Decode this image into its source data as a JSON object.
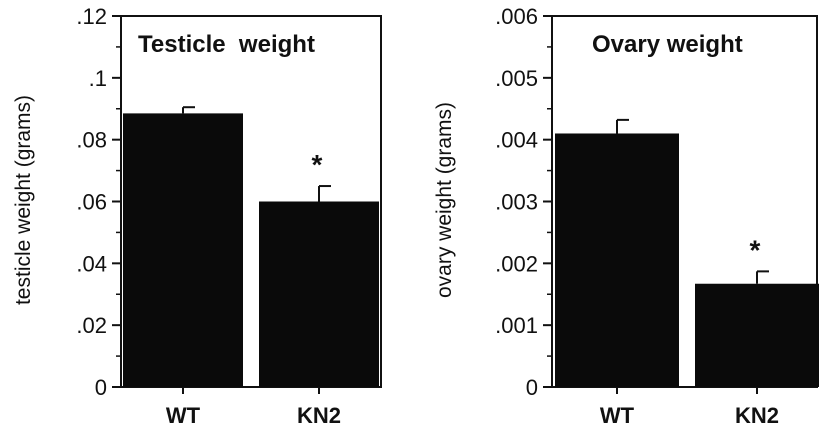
{
  "colors": {
    "bar": "#0a0a0a",
    "axis": "#111111",
    "background": "#ffffff"
  },
  "chart_data": [
    {
      "type": "bar",
      "title": "Testicle  weight",
      "xlabel": "",
      "ylabel": "testicle weight (grams)",
      "categories": [
        "WT",
        "KN2"
      ],
      "values": [
        0.0885,
        0.06
      ],
      "errors": [
        0.002,
        0.005
      ],
      "significance": [
        "",
        "*"
      ],
      "ylim": [
        0,
        0.12
      ],
      "yticks": [
        0,
        0.02,
        0.04,
        0.06,
        0.08,
        0.1,
        0.12
      ],
      "ytick_labels": [
        "0",
        ".02",
        ".04",
        ".06",
        ".08",
        ".1",
        ".12"
      ]
    },
    {
      "type": "bar",
      "title": "Ovary weight",
      "xlabel": "",
      "ylabel": "ovary weight (grams)",
      "categories": [
        "WT",
        "KN2"
      ],
      "values": [
        0.0041,
        0.00167
      ],
      "errors": [
        0.00022,
        0.0002
      ],
      "significance": [
        "",
        "*"
      ],
      "ylim": [
        0,
        0.006
      ],
      "yticks": [
        0,
        0.001,
        0.002,
        0.003,
        0.004,
        0.005,
        0.006
      ],
      "ytick_labels": [
        "0",
        ".001",
        ".002",
        ".003",
        ".004",
        ".005",
        ".006"
      ]
    }
  ]
}
